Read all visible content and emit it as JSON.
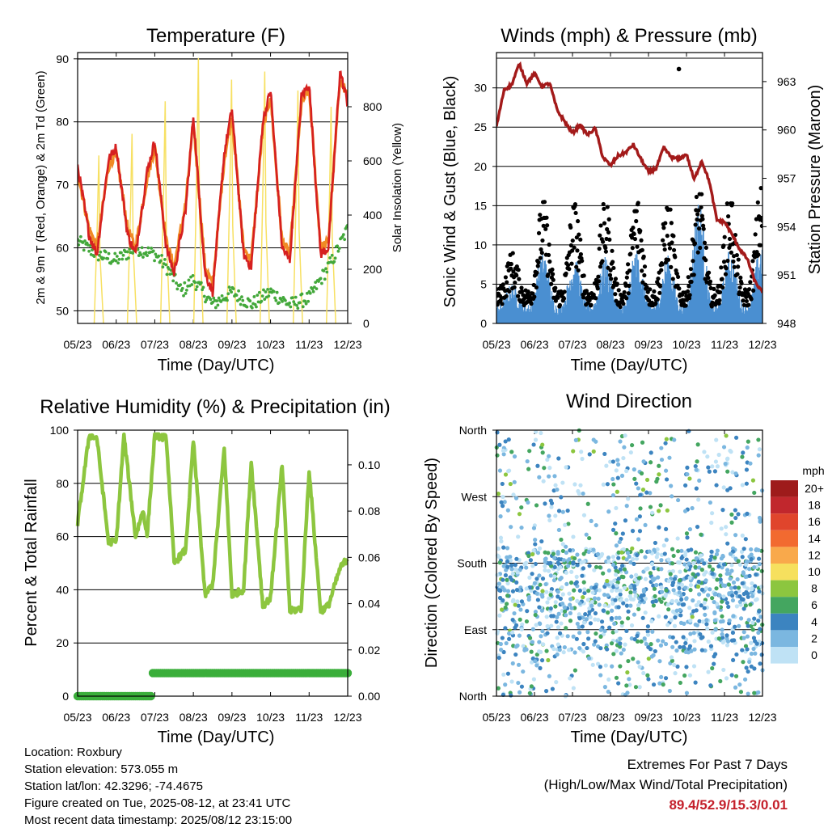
{
  "chart_data": [
    {
      "type": "line",
      "title": "Temperature (F)",
      "xlabel": "Time (Day/UTC)",
      "ylabel": "2m & 9m T (Red, Orange) & 2m Td (Green)",
      "y2label": "Solar Insolation (Yellow)",
      "x_ticks": [
        "05/23",
        "06/23",
        "07/23",
        "08/23",
        "09/23",
        "10/23",
        "11/23",
        "12/23"
      ],
      "ylim": [
        48,
        91
      ],
      "y_ticks": [
        50,
        60,
        70,
        80,
        90
      ],
      "y2lim": [
        0,
        1000
      ],
      "y2_ticks": [
        0,
        200,
        400,
        600,
        800
      ],
      "day_range": [
        0,
        7
      ],
      "series": [
        {
          "key": "t2m",
          "color": "#d62020",
          "x": [
            0,
            0.3,
            0.5,
            0.8,
            1.0,
            1.3,
            1.5,
            1.8,
            2.0,
            2.3,
            2.5,
            2.8,
            3.0,
            3.3,
            3.5,
            3.8,
            4.0,
            4.3,
            4.5,
            4.8,
            5.0,
            5.3,
            5.5,
            5.8,
            6.0,
            6.3,
            6.5,
            6.8,
            7.0
          ],
          "y": [
            73,
            62,
            59,
            74,
            76,
            62,
            59,
            72,
            77,
            60,
            56,
            66,
            81,
            56,
            53,
            75,
            82,
            59,
            57,
            80,
            85,
            60,
            58,
            84,
            86,
            59,
            60,
            88,
            83
          ]
        },
        {
          "key": "t9m",
          "color": "#f08a25",
          "x": [
            0,
            0.3,
            0.5,
            0.8,
            1.0,
            1.3,
            1.5,
            1.8,
            2.0,
            2.3,
            2.5,
            2.8,
            3.0,
            3.3,
            3.5,
            3.8,
            4.0,
            4.3,
            4.5,
            4.8,
            5.0,
            5.3,
            5.5,
            5.8,
            6.0,
            6.3,
            6.5,
            6.8,
            7.0
          ],
          "y": [
            72,
            63,
            60,
            73,
            75,
            63,
            60,
            71,
            76,
            61,
            57,
            67,
            80,
            57,
            54,
            74,
            81,
            60,
            58,
            79,
            84,
            61,
            59,
            83,
            85,
            60,
            61,
            87,
            84
          ]
        },
        {
          "key": "td2m",
          "color": "#43a83b",
          "x": [
            0,
            0.5,
            1.0,
            1.5,
            2.0,
            2.3,
            2.7,
            3.0,
            3.5,
            4.0,
            4.5,
            5.0,
            5.5,
            6.0,
            6.3,
            6.6,
            7.0
          ],
          "y": [
            61,
            59,
            58,
            60,
            59,
            57,
            53,
            55,
            51,
            53,
            51,
            53,
            51,
            52,
            55,
            58,
            63
          ]
        },
        {
          "key": "solar",
          "color": "#f7e062",
          "axis": "y2",
          "peaks": [
            620,
            700,
            820,
            980,
            900,
            930,
            860,
            800,
            760
          ]
        }
      ]
    },
    {
      "type": "scatter",
      "title": "Winds (mph) & Pressure (mb)",
      "xlabel": "Time (Day/UTC)",
      "ylabel": "Sonic Wind & Gust (Blue, Black)",
      "y2label": "Station Pressure (Maroon)",
      "x_ticks": [
        "05/23",
        "06/23",
        "07/23",
        "08/23",
        "09/23",
        "10/23",
        "11/23",
        "12/23"
      ],
      "ylim": [
        0,
        34.5
      ],
      "y_ticks": [
        0,
        5,
        10,
        15,
        20,
        25,
        30
      ],
      "y2lim": [
        948,
        964.8
      ],
      "y2_ticks": [
        948,
        951,
        954,
        957,
        960,
        963
      ],
      "day_range": [
        0,
        7
      ],
      "series": [
        {
          "key": "pressure",
          "color": "#a31a1a",
          "axis": "y2",
          "x": [
            0,
            0.2,
            0.4,
            0.6,
            0.8,
            1.0,
            1.2,
            1.4,
            1.6,
            1.8,
            2.0,
            2.2,
            2.4,
            2.6,
            2.8,
            3.0,
            3.2,
            3.4,
            3.6,
            3.8,
            4.0,
            4.2,
            4.4,
            4.6,
            4.8,
            5.0,
            5.2,
            5.4,
            5.6,
            5.8,
            6.0,
            6.2,
            6.4,
            6.6,
            6.8,
            7.0
          ],
          "y": [
            960.2,
            962.5,
            962.8,
            964.1,
            962.9,
            963.5,
            962.7,
            962.9,
            961.2,
            960.5,
            959.8,
            960.3,
            959.7,
            960.1,
            958.3,
            957.8,
            958.4,
            958.6,
            959.1,
            958.2,
            957.4,
            957.6,
            958.9,
            958.3,
            958.2,
            958.5,
            956.9,
            958.1,
            956.8,
            954.4,
            954.3,
            953.5,
            952.6,
            952.0,
            950.6,
            949.9
          ]
        },
        {
          "key": "gust",
          "color": "#000000",
          "peaks": [
            5,
            12,
            12,
            12,
            13,
            12,
            14,
            13,
            14
          ]
        },
        {
          "key": "sonic",
          "color": "#4a8fd1",
          "peaks": [
            3,
            8,
            7,
            7,
            8,
            7,
            15.3,
            8,
            9
          ]
        }
      ],
      "outlier": {
        "x": 4.8,
        "y": 32.4
      }
    },
    {
      "type": "line",
      "title": "Relative Humidity (%) & Precipitation (in)",
      "xlabel": "Time (Day/UTC)",
      "ylabel": "Percent & Total Rainfall",
      "x_ticks": [
        "05/23",
        "06/23",
        "07/23",
        "08/23",
        "09/23",
        "10/23",
        "11/23",
        "12/23"
      ],
      "ylim": [
        0,
        100
      ],
      "y_ticks": [
        0,
        20,
        40,
        60,
        80,
        100
      ],
      "y2lim": [
        0,
        0.115
      ],
      "y2_ticks": [
        "0.00",
        "0.02",
        "0.04",
        "0.06",
        "0.08",
        "0.10"
      ],
      "day_range": [
        0,
        7
      ],
      "series": [
        {
          "key": "rh",
          "color": "#8dc63f",
          "x": [
            0,
            0.3,
            0.5,
            0.8,
            1.0,
            1.2,
            1.5,
            1.7,
            1.8,
            2.0,
            2.3,
            2.5,
            2.8,
            3.0,
            3.3,
            3.5,
            3.8,
            4.0,
            4.3,
            4.5,
            4.8,
            5.0,
            5.3,
            5.5,
            5.8,
            6.0,
            6.3,
            6.5,
            6.8,
            7.0
          ],
          "y": [
            65,
            98,
            97,
            58,
            58,
            98,
            60,
            70,
            60,
            98,
            97,
            50,
            55,
            96,
            38,
            42,
            93,
            38,
            40,
            88,
            34,
            37,
            87,
            32,
            33,
            85,
            32,
            34,
            48,
            52
          ]
        },
        {
          "key": "precip",
          "color": "#3aae3a",
          "axis": "y2",
          "x": [
            0,
            1.0,
            1.9,
            2.0,
            2.1,
            3.0,
            4.0,
            5.0,
            6.0,
            7.0
          ],
          "y": [
            0,
            0,
            0,
            0.01,
            0.01,
            0.01,
            0.01,
            0.01,
            0.01,
            0.01
          ]
        }
      ]
    },
    {
      "type": "scatter",
      "title": "Wind Direction",
      "xlabel": "Time (Day/UTC)",
      "ylabel": "Direction (Colored By Speed)",
      "x_ticks": [
        "05/23",
        "06/23",
        "07/23",
        "08/23",
        "09/23",
        "10/23",
        "11/23",
        "12/23"
      ],
      "y_ticks": [
        "North",
        "East",
        "South",
        "West",
        "North"
      ],
      "ylim": [
        0,
        360
      ],
      "day_range": [
        0,
        7
      ],
      "legend": {
        "title": "mph",
        "levels": [
          "20+",
          "18",
          "16",
          "14",
          "12",
          "10",
          "8",
          "6",
          "4",
          "2",
          "0"
        ],
        "colors": [
          "#9e1b1b",
          "#c1272d",
          "#e0452c",
          "#f26a30",
          "#f9a94b",
          "#f6e05e",
          "#8cc63f",
          "#44a660",
          "#3c84c0",
          "#7bb7e0",
          "#bfe2f5"
        ]
      }
    }
  ],
  "info": {
    "location": "Location: Roxbury",
    "elevation": "Station elevation: 573.055 m",
    "latlon": "Station lat/lon: 42.3296; -74.4675",
    "created": "Figure created on Tue, 2025-08-12, at 23:41 UTC",
    "latest": "Most recent data timestamp: 2025/08/12 23:15:00"
  },
  "extremes": {
    "line1": "Extremes For Past 7 Days",
    "line2": "(High/Low/Max Wind/Total Precipitation)",
    "values": "89.4/52.9/15.3/0.01"
  }
}
